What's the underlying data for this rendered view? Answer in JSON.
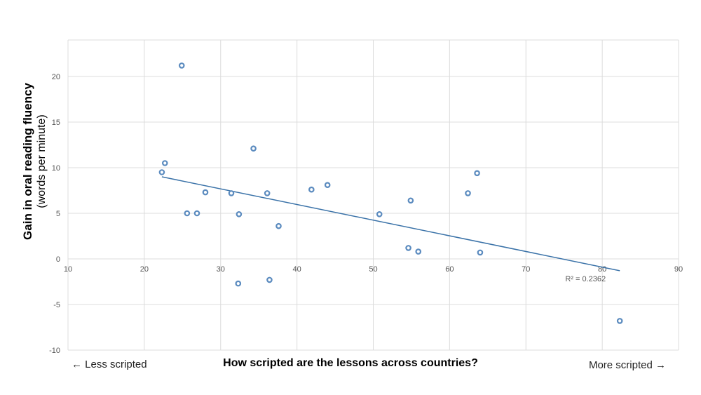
{
  "chart_data": {
    "type": "scatter",
    "xlabel": "How scripted are the lessons across countries?",
    "ylabel": "Gain in oral reading fluency",
    "ylabel_sub": "(words per minute)",
    "x_note_left": "← Less scripted",
    "x_note_right": "More scripted →",
    "xlim": [
      10,
      90
    ],
    "ylim": [
      -10,
      24
    ],
    "x_ticks": [
      10,
      20,
      30,
      40,
      50,
      60,
      70,
      80,
      90
    ],
    "y_ticks": [
      -10,
      -5,
      0,
      5,
      10,
      15,
      20
    ],
    "grid": true,
    "points": [
      {
        "x": 22.3,
        "y": 9.5
      },
      {
        "x": 22.7,
        "y": 10.5
      },
      {
        "x": 24.9,
        "y": 21.2
      },
      {
        "x": 25.6,
        "y": 5.0
      },
      {
        "x": 26.9,
        "y": 5.0
      },
      {
        "x": 28.0,
        "y": 7.3
      },
      {
        "x": 31.4,
        "y": 7.2
      },
      {
        "x": 32.3,
        "y": -2.7
      },
      {
        "x": 32.4,
        "y": 4.9
      },
      {
        "x": 34.3,
        "y": 12.1
      },
      {
        "x": 36.1,
        "y": 7.2
      },
      {
        "x": 36.4,
        "y": -2.3
      },
      {
        "x": 37.6,
        "y": 3.6
      },
      {
        "x": 41.9,
        "y": 7.6
      },
      {
        "x": 44.0,
        "y": 8.1
      },
      {
        "x": 50.8,
        "y": 4.9
      },
      {
        "x": 54.6,
        "y": 1.2
      },
      {
        "x": 54.9,
        "y": 6.4
      },
      {
        "x": 55.9,
        "y": 0.8
      },
      {
        "x": 62.4,
        "y": 7.2
      },
      {
        "x": 63.6,
        "y": 9.4
      },
      {
        "x": 64.0,
        "y": 0.7
      },
      {
        "x": 82.3,
        "y": -6.8
      }
    ],
    "trendline": {
      "x": [
        22.3,
        82.3
      ],
      "y": [
        9.0,
        -1.3
      ]
    },
    "r_squared_label": "R² = 0.2362",
    "colors": {
      "points": "#5b8bbf",
      "trendline": "#3a72a8",
      "grid": "#dcdcdc"
    }
  }
}
